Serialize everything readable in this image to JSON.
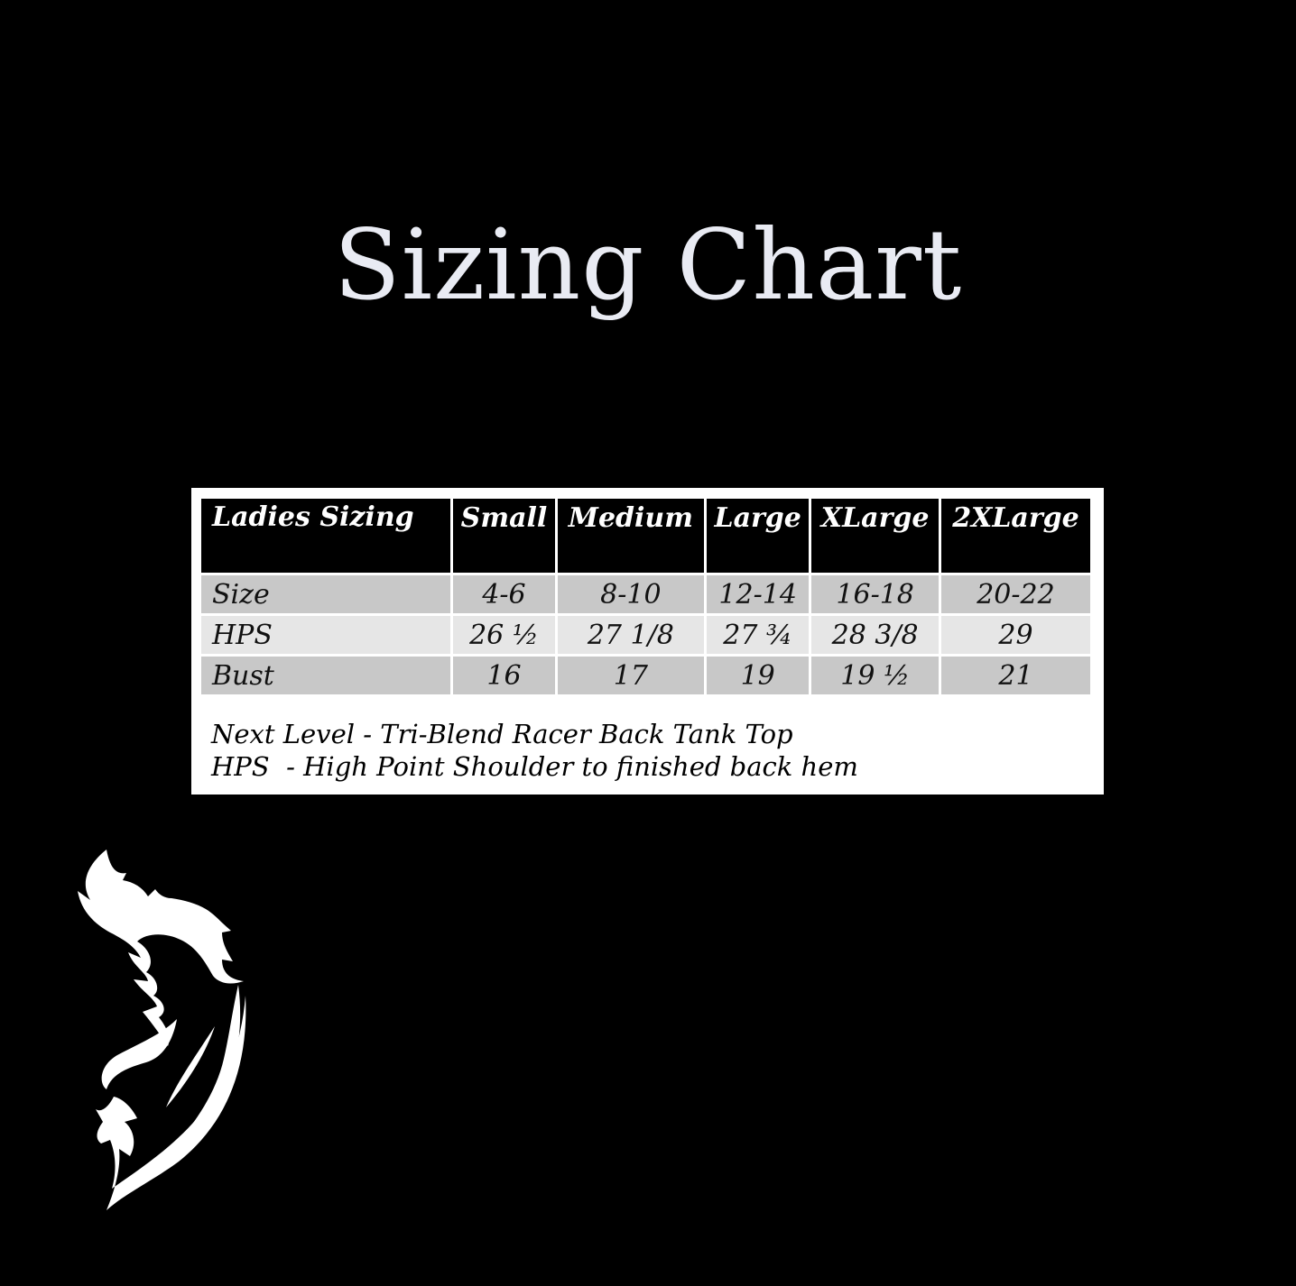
{
  "title": "Sizing Chart",
  "table": {
    "header": [
      "Ladies Sizing",
      "Small",
      "Medium",
      "Large",
      "XLarge",
      "2XLarge"
    ],
    "rows": [
      [
        "Size",
        "4-6",
        "8-10",
        "12-14",
        "16-18",
        "20-22"
      ],
      [
        "HPS",
        "26 ½",
        "27 1/8",
        "27 ¾",
        "28 3/8",
        "29"
      ],
      [
        "Bust",
        "16",
        "17",
        "19",
        "19 ½",
        "21"
      ]
    ]
  },
  "notes": [
    "Next Level - Tri-Blend Racer Back Tank Top",
    "HPS  - High Point Shoulder to finished back hem"
  ],
  "logo": {
    "icon": "flame-horse-head-logo",
    "color": "#ffffff"
  },
  "colors": {
    "background": "#000000",
    "title": "#e9ebf3",
    "header_bg": "#000000",
    "row_dark": "#c8c8c8",
    "row_light": "#e6e6e6"
  }
}
